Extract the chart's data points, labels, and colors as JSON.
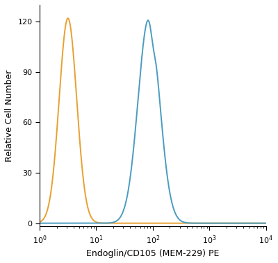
{
  "title": "",
  "xlabel": "Endoglin/CD105 (MEM-229) PE",
  "ylabel": "Relative Cell Number",
  "xlim": [
    1,
    10000
  ],
  "ylim": [
    -2,
    130
  ],
  "yticks": [
    0,
    30,
    60,
    90,
    120
  ],
  "xticks": [
    1,
    10,
    100,
    1000,
    10000
  ],
  "xtick_labels": [
    "10$^{0}$",
    "10$^{1}$",
    "10$^{2}$",
    "10$^{3}$",
    "10$^{4}$"
  ],
  "orange_color": "#E8A030",
  "blue_color": "#4A9CC0",
  "linewidth": 1.4,
  "orange_peak_log": 0.5,
  "orange_sigma_log": 0.155,
  "orange_height": 122,
  "blue_peak_log": 1.93,
  "blue_sigma_log": 0.19,
  "blue_height": 122,
  "blue_notch_log": 2.0,
  "blue_notch_depth": 8,
  "blue_notch_sigma": 0.04,
  "blue_shoulder_log": 2.05,
  "blue_shoulder_height": 88,
  "blue_shoulder_sigma": 0.11
}
